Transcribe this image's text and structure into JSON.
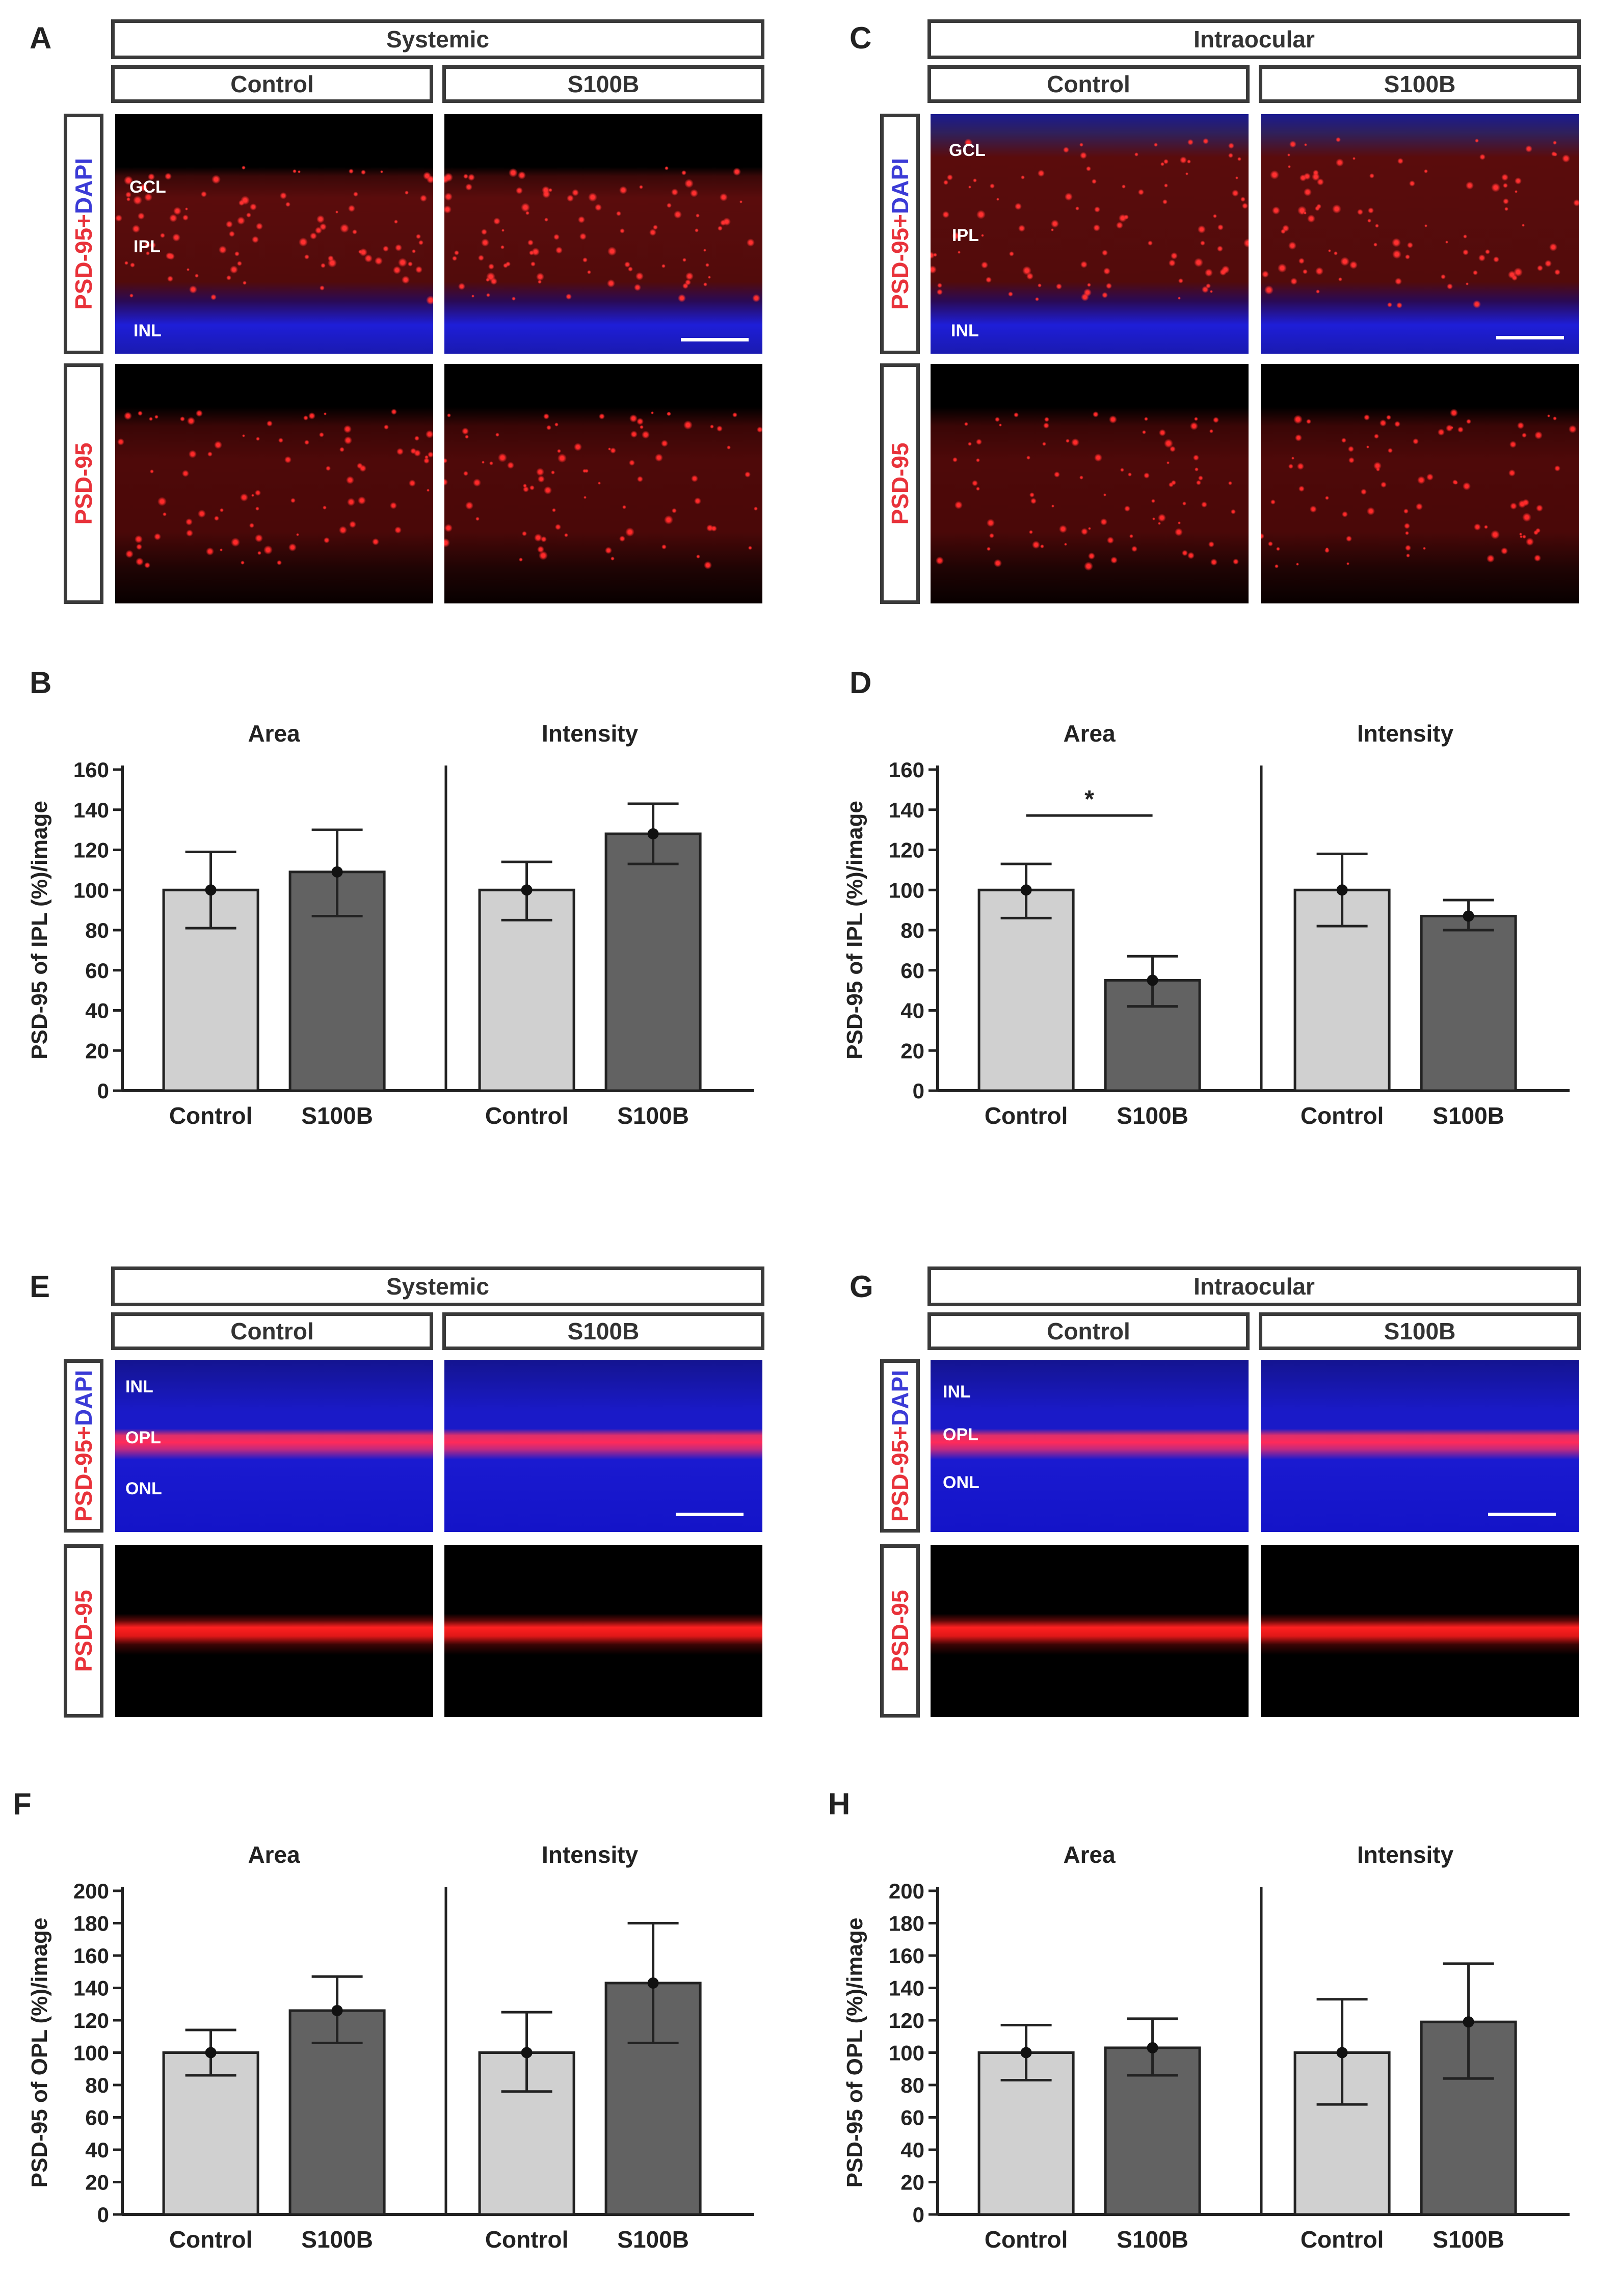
{
  "panels": {
    "A": {
      "letter": "A",
      "group": "Systemic",
      "col1": "Control",
      "col2": "S100B",
      "row1_label_a": "PSD-95",
      "row1_label_plus": "+",
      "row1_label_b": "DAPI",
      "row2_label": "PSD-95",
      "layers": [
        "GCL",
        "IPL",
        "INL"
      ]
    },
    "C": {
      "letter": "C",
      "group": "Intraocular",
      "col1": "Control",
      "col2": "S100B",
      "row1_label_a": "PSD-95",
      "row1_label_plus": "+",
      "row1_label_b": "DAPI",
      "row2_label": "PSD-95",
      "layers": [
        "GCL",
        "IPL",
        "INL"
      ]
    },
    "E": {
      "letter": "E",
      "group": "Systemic",
      "col1": "Control",
      "col2": "S100B",
      "row1_label_a": "PSD-95",
      "row1_label_plus": "+",
      "row1_label_b": "DAPI",
      "row2_label": "PSD-95",
      "layers": [
        "INL",
        "OPL",
        "ONL"
      ]
    },
    "G": {
      "letter": "G",
      "group": "Intraocular",
      "col1": "Control",
      "col2": "S100B",
      "row1_label_a": "PSD-95",
      "row1_label_plus": "+",
      "row1_label_b": "DAPI",
      "row2_label": "PSD-95",
      "layers": [
        "INL",
        "OPL",
        "ONL"
      ]
    }
  },
  "colors": {
    "control_bar": "#d0d0d0",
    "s100b_bar": "#626262",
    "red_stain": "#e8323a",
    "blue_stain": "#1e1ed8"
  },
  "chart_data": [
    {
      "panel": "B",
      "type": "bar",
      "ylabel": "PSD-95 of IPL (%)/image",
      "ylim": [
        0,
        160
      ],
      "yticks": [
        0,
        20,
        40,
        60,
        80,
        100,
        120,
        140,
        160
      ],
      "groups": [
        {
          "title": "Area",
          "categories": [
            "Control",
            "S100B"
          ],
          "values": [
            100,
            109
          ],
          "error_low": [
            81,
            87
          ],
          "error_high": [
            119,
            130
          ]
        },
        {
          "title": "Intensity",
          "categories": [
            "Control",
            "S100B"
          ],
          "values": [
            100,
            128
          ],
          "error_low": [
            85,
            113
          ],
          "error_high": [
            114,
            143
          ]
        }
      ]
    },
    {
      "panel": "D",
      "type": "bar",
      "ylabel": "PSD-95 of IPL (%)/image",
      "ylim": [
        0,
        160
      ],
      "yticks": [
        0,
        20,
        40,
        60,
        80,
        100,
        120,
        140,
        160
      ],
      "groups": [
        {
          "title": "Area",
          "categories": [
            "Control",
            "S100B"
          ],
          "values": [
            100,
            55
          ],
          "error_low": [
            86,
            42
          ],
          "error_high": [
            113,
            67
          ],
          "significance": "*"
        },
        {
          "title": "Intensity",
          "categories": [
            "Control",
            "S100B"
          ],
          "values": [
            100,
            87
          ],
          "error_low": [
            82,
            80
          ],
          "error_high": [
            118,
            95
          ]
        }
      ]
    },
    {
      "panel": "F",
      "type": "bar",
      "ylabel": "PSD-95 of OPL (%)/image",
      "ylim": [
        0,
        200
      ],
      "yticks": [
        0,
        20,
        40,
        60,
        80,
        100,
        120,
        140,
        160,
        180,
        200
      ],
      "groups": [
        {
          "title": "Area",
          "categories": [
            "Control",
            "S100B"
          ],
          "values": [
            100,
            126
          ],
          "error_low": [
            86,
            106
          ],
          "error_high": [
            114,
            147
          ]
        },
        {
          "title": "Intensity",
          "categories": [
            "Control",
            "S100B"
          ],
          "values": [
            100,
            143
          ],
          "error_low": [
            76,
            106
          ],
          "error_high": [
            125,
            180
          ]
        }
      ]
    },
    {
      "panel": "H",
      "type": "bar",
      "ylabel": "PSD-95 of OPL (%)/image",
      "ylim": [
        0,
        200
      ],
      "yticks": [
        0,
        20,
        40,
        60,
        80,
        100,
        120,
        140,
        160,
        180,
        200
      ],
      "groups": [
        {
          "title": "Area",
          "categories": [
            "Control",
            "S100B"
          ],
          "values": [
            100,
            103
          ],
          "error_low": [
            83,
            86
          ],
          "error_high": [
            117,
            121
          ]
        },
        {
          "title": "Intensity",
          "categories": [
            "Control",
            "S100B"
          ],
          "values": [
            100,
            119
          ],
          "error_low": [
            68,
            84
          ],
          "error_high": [
            133,
            155
          ]
        }
      ]
    }
  ]
}
